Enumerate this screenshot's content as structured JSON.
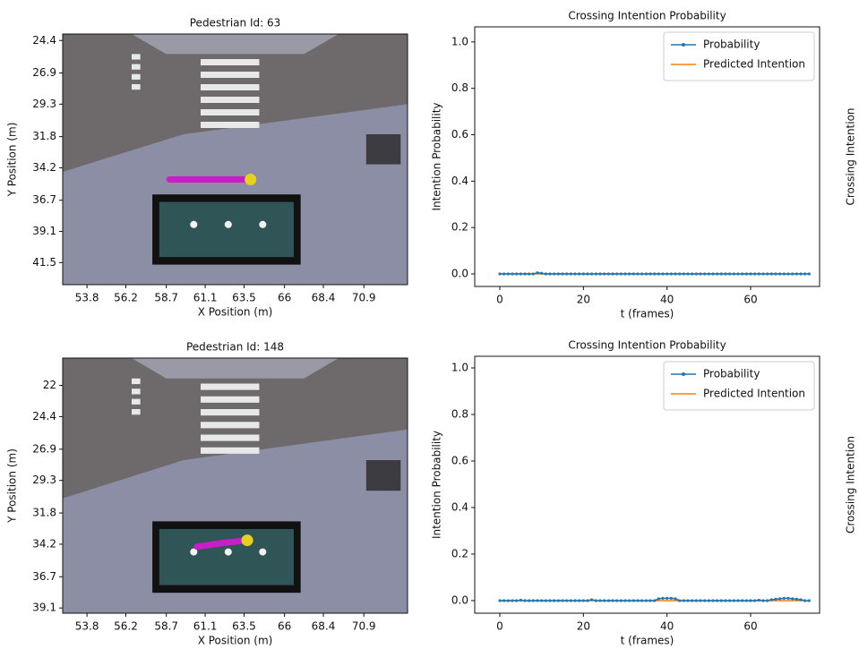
{
  "chart_data": [
    {
      "type": "image",
      "title": "Pedestrian Id: 63",
      "xlabel": "X Position (m)",
      "ylabel": "Y Position (m)",
      "xlim": [
        52.3,
        73.6
      ],
      "ylim": [
        43.2,
        23.9
      ],
      "xticks": [
        53.8,
        56.2,
        58.7,
        61.1,
        63.5,
        66,
        68.4,
        70.9
      ],
      "yticks": [
        24.4,
        26.9,
        29.3,
        31.8,
        34.2,
        36.7,
        39.1,
        41.5
      ],
      "trajectory": {
        "x": [
          58.9,
          63.9
        ],
        "y": [
          35.1,
          35.1
        ],
        "color": "#c81ec8"
      },
      "position": {
        "x": 63.9,
        "y": 35.1,
        "color": "#e6d21e"
      }
    },
    {
      "type": "line",
      "title": "Crossing Intention Probability",
      "xlabel": "t (frames)",
      "ylabel": "Intention Probability",
      "y2label": "Crossing Intention",
      "xlim": [
        -6,
        76.5
      ],
      "ylim": [
        -0.054,
        1.065
      ],
      "xticks": [
        0,
        20,
        40,
        60
      ],
      "yticks": [
        {
          "value": 0,
          "label": "0.0"
        },
        {
          "value": 0.2,
          "label": "0.2"
        },
        {
          "value": 0.4,
          "label": "0.4"
        },
        {
          "value": 0.6,
          "label": "0.6"
        },
        {
          "value": 0.8,
          "label": "0.8"
        },
        {
          "value": 1,
          "label": "1.0"
        }
      ],
      "legend": "upper right",
      "x": [
        0,
        1,
        2,
        3,
        4,
        5,
        6,
        7,
        8,
        9,
        10,
        11,
        12,
        13,
        14,
        15,
        16,
        17,
        18,
        19,
        20,
        21,
        22,
        23,
        24,
        25,
        26,
        27,
        28,
        29,
        30,
        31,
        32,
        33,
        34,
        35,
        36,
        37,
        38,
        39,
        40,
        41,
        42,
        43,
        44,
        45,
        46,
        47,
        48,
        49,
        50,
        51,
        52,
        53,
        54,
        55,
        56,
        57,
        58,
        59,
        60,
        61,
        62,
        63,
        64,
        65,
        66,
        67,
        68,
        69,
        70,
        71,
        72,
        73,
        74
      ],
      "series": [
        {
          "name": "Probability",
          "color": "#1f77b4",
          "markers": true,
          "values": [
            0,
            0,
            0,
            0,
            0,
            0,
            0,
            0,
            0,
            0.005,
            0.003,
            0,
            0,
            0,
            0,
            0,
            0,
            0,
            0,
            0,
            0,
            0,
            0,
            0,
            0,
            0,
            0,
            0,
            0,
            0,
            0,
            0,
            0,
            0,
            0,
            0,
            0,
            0,
            0,
            0,
            0,
            0,
            0,
            0,
            0,
            0,
            0,
            0,
            0,
            0,
            0,
            0,
            0,
            0,
            0,
            0,
            0,
            0,
            0,
            0,
            0,
            0,
            0,
            0,
            0,
            0,
            0,
            0,
            0,
            0,
            0,
            0,
            0,
            0,
            0
          ]
        },
        {
          "name": "Predicted Intention",
          "color": "#ff7f0e",
          "markers": false,
          "values": [
            0,
            0,
            0,
            0,
            0,
            0,
            0,
            0,
            0,
            0,
            0,
            0,
            0,
            0,
            0,
            0,
            0,
            0,
            0,
            0,
            0,
            0,
            0,
            0,
            0,
            0,
            0,
            0,
            0,
            0,
            0,
            0,
            0,
            0,
            0,
            0,
            0,
            0,
            0,
            0,
            0,
            0,
            0,
            0,
            0,
            0,
            0,
            0,
            0,
            0,
            0,
            0,
            0,
            0,
            0,
            0,
            0,
            0,
            0,
            0,
            0,
            0,
            0,
            0,
            0,
            0,
            0,
            0,
            0,
            0,
            0,
            0,
            0,
            0,
            0
          ]
        }
      ]
    },
    {
      "type": "image",
      "title": "Pedestrian Id: 148",
      "xlabel": "X Position (m)",
      "ylabel": "Y Position (m)",
      "xlim": [
        52.3,
        73.6
      ],
      "ylim": [
        39.5,
        19.9
      ],
      "xticks": [
        53.8,
        56.2,
        58.7,
        61.1,
        63.5,
        66,
        68.4,
        70.9
      ],
      "yticks": [
        22,
        24.4,
        26.9,
        29.3,
        31.8,
        34.2,
        36.7,
        39.1
      ],
      "trajectory": {
        "x": [
          60.6,
          62.2,
          63.7
        ],
        "y": [
          34.4,
          34.1,
          33.9
        ],
        "color": "#c81ec8"
      },
      "position": {
        "x": 63.7,
        "y": 33.9,
        "color": "#e6d21e"
      }
    },
    {
      "type": "line",
      "title": "Crossing Intention Probability",
      "xlabel": "t (frames)",
      "ylabel": "Intention Probability",
      "y2label": "Crossing Intention",
      "xlim": [
        -6,
        76.5
      ],
      "ylim": [
        -0.054,
        1.05
      ],
      "xticks": [
        0,
        20,
        40,
        60
      ],
      "yticks": [
        {
          "value": 0,
          "label": "0.0"
        },
        {
          "value": 0.2,
          "label": "0.2"
        },
        {
          "value": 0.4,
          "label": "0.4"
        },
        {
          "value": 0.6,
          "label": "0.6"
        },
        {
          "value": 0.8,
          "label": "0.8"
        },
        {
          "value": 1,
          "label": "1.0"
        }
      ],
      "legend": "upper right",
      "x": [
        0,
        1,
        2,
        3,
        4,
        5,
        6,
        7,
        8,
        9,
        10,
        11,
        12,
        13,
        14,
        15,
        16,
        17,
        18,
        19,
        20,
        21,
        22,
        23,
        24,
        25,
        26,
        27,
        28,
        29,
        30,
        31,
        32,
        33,
        34,
        35,
        36,
        37,
        38,
        39,
        40,
        41,
        42,
        43,
        44,
        45,
        46,
        47,
        48,
        49,
        50,
        51,
        52,
        53,
        54,
        55,
        56,
        57,
        58,
        59,
        60,
        61,
        62,
        63,
        64,
        65,
        66,
        67,
        68,
        69,
        70,
        71,
        72,
        73,
        74
      ],
      "series": [
        {
          "name": "Probability",
          "color": "#1f77b4",
          "markers": true,
          "values": [
            0,
            0,
            0,
            0,
            0,
            0.002,
            0,
            0,
            0,
            0,
            0,
            0,
            0,
            0,
            0,
            0,
            0,
            0,
            0,
            0,
            0,
            0,
            0.004,
            0,
            0,
            0,
            0,
            0,
            0,
            0,
            0,
            0,
            0,
            0,
            0,
            0,
            0,
            0,
            0.008,
            0.01,
            0.01,
            0.01,
            0.008,
            0,
            0,
            0,
            0,
            0,
            0,
            0,
            0,
            0,
            0,
            0,
            0,
            0,
            0,
            0,
            0,
            0,
            0,
            0,
            0.002,
            0,
            0,
            0.004,
            0.006,
            0.008,
            0.01,
            0.01,
            0.008,
            0.006,
            0.004,
            0,
            0
          ]
        },
        {
          "name": "Predicted Intention",
          "color": "#ff7f0e",
          "markers": false,
          "values": [
            0,
            0,
            0,
            0,
            0,
            0,
            0,
            0,
            0,
            0,
            0,
            0,
            0,
            0,
            0,
            0,
            0,
            0,
            0,
            0,
            0,
            0,
            0,
            0,
            0,
            0,
            0,
            0,
            0,
            0,
            0,
            0,
            0,
            0,
            0,
            0,
            0,
            0,
            0,
            0,
            0,
            0,
            0,
            0,
            0,
            0,
            0,
            0,
            0,
            0,
            0,
            0,
            0,
            0,
            0,
            0,
            0,
            0,
            0,
            0,
            0,
            0,
            0,
            0,
            0,
            0,
            0,
            0,
            0,
            0,
            0,
            0,
            0,
            0,
            0
          ]
        }
      ]
    }
  ]
}
